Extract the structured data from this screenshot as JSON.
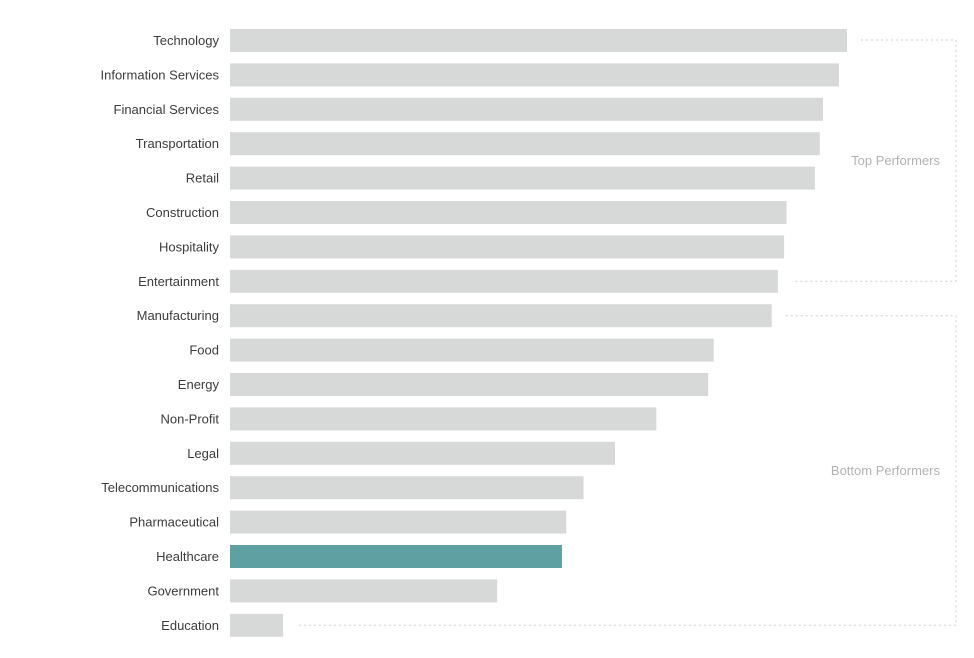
{
  "chart_data": {
    "type": "bar",
    "orientation": "horizontal",
    "categories": [
      "Technology",
      "Information Services",
      "Financial Services",
      "Transportation",
      "Retail",
      "Construction",
      "Hospitality",
      "Entertainment",
      "Manufacturing",
      "Food",
      "Energy",
      "Non-Profit",
      "Legal",
      "Telecommunications",
      "Pharmaceutical",
      "Healthcare",
      "Government",
      "Education"
    ],
    "values": [
      100,
      98.7,
      96.1,
      95.6,
      94.8,
      90.2,
      89.8,
      88.8,
      87.8,
      78.4,
      77.5,
      69.1,
      62.4,
      57.3,
      54.5,
      53.8,
      43.3,
      8.6
    ],
    "xlim": [
      0,
      100
    ],
    "value_axis_labeled": false,
    "grid": false,
    "highlight": "Healthcare",
    "colors": {
      "bar": "#d7d9d9",
      "highlight": "#5fa1a2",
      "bracket": "#cfcfcf",
      "group_label": "#b3b3b3",
      "category_label": "#3c3c3c"
    },
    "groups": [
      {
        "label": "Top Performers",
        "from": "Technology",
        "to": "Entertainment"
      },
      {
        "label": "Bottom Performers",
        "from": "Manufacturing",
        "to": "Education"
      }
    ]
  }
}
